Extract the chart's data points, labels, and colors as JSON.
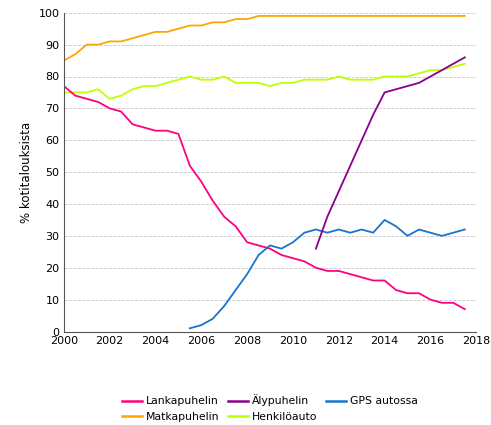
{
  "title": "",
  "ylabel": "% kotitalouksista",
  "ylim": [
    0,
    100
  ],
  "xlim": [
    2000,
    2018
  ],
  "yticks": [
    0,
    10,
    20,
    30,
    40,
    50,
    60,
    70,
    80,
    90,
    100
  ],
  "xticks": [
    2000,
    2002,
    2004,
    2006,
    2008,
    2010,
    2012,
    2014,
    2016,
    2018
  ],
  "series": {
    "Lankapuhelin": {
      "color": "#FF007F",
      "x": [
        2000.0,
        2000.5,
        2001.0,
        2001.5,
        2002.0,
        2002.5,
        2003.0,
        2003.5,
        2004.0,
        2004.5,
        2005.0,
        2005.5,
        2006.0,
        2006.5,
        2007.0,
        2007.5,
        2008.0,
        2008.5,
        2009.0,
        2009.5,
        2010.0,
        2010.5,
        2011.0,
        2011.5,
        2012.0,
        2012.5,
        2013.0,
        2013.5,
        2014.0,
        2014.5,
        2015.0,
        2015.5,
        2016.0,
        2016.5,
        2017.0,
        2017.5
      ],
      "y": [
        77,
        74,
        73,
        72,
        70,
        69,
        65,
        64,
        63,
        63,
        62,
        52,
        47,
        41,
        36,
        33,
        28,
        27,
        26,
        24,
        23,
        22,
        20,
        19,
        19,
        18,
        17,
        16,
        16,
        13,
        12,
        12,
        10,
        9,
        9,
        7
      ]
    },
    "Matkapuhelin": {
      "color": "#FFA500",
      "x": [
        2000.0,
        2000.5,
        2001.0,
        2001.5,
        2002.0,
        2002.5,
        2003.0,
        2003.5,
        2004.0,
        2004.5,
        2005.0,
        2005.5,
        2006.0,
        2006.5,
        2007.0,
        2007.5,
        2008.0,
        2008.5,
        2009.0,
        2009.5,
        2010.0,
        2010.5,
        2011.0,
        2011.5,
        2012.0,
        2012.5,
        2013.0,
        2013.5,
        2014.0,
        2014.5,
        2015.0,
        2015.5,
        2016.0,
        2016.5,
        2017.0,
        2017.5
      ],
      "y": [
        85,
        87,
        90,
        90,
        91,
        91,
        92,
        93,
        94,
        94,
        95,
        96,
        96,
        97,
        97,
        98,
        98,
        99,
        99,
        99,
        99,
        99,
        99,
        99,
        99,
        99,
        99,
        99,
        99,
        99,
        99,
        99,
        99,
        99,
        99,
        99
      ]
    },
    "Alypuhelin": {
      "color": "#8B008B",
      "x": [
        2011.0,
        2011.5,
        2012.0,
        2012.5,
        2013.0,
        2013.5,
        2014.0,
        2014.5,
        2015.0,
        2015.5,
        2016.0,
        2016.5,
        2017.0,
        2017.5
      ],
      "y": [
        26,
        36,
        44,
        52,
        60,
        68,
        75,
        76,
        77,
        78,
        80,
        82,
        84,
        86
      ]
    },
    "Henkiloauto": {
      "color": "#BFFF00",
      "x": [
        2000.0,
        2000.5,
        2001.0,
        2001.5,
        2002.0,
        2002.5,
        2003.0,
        2003.5,
        2004.0,
        2004.5,
        2005.0,
        2005.5,
        2006.0,
        2006.5,
        2007.0,
        2007.5,
        2008.0,
        2008.5,
        2009.0,
        2009.5,
        2010.0,
        2010.5,
        2011.0,
        2011.5,
        2012.0,
        2012.5,
        2013.0,
        2013.5,
        2014.0,
        2014.5,
        2015.0,
        2015.5,
        2016.0,
        2016.5,
        2017.0,
        2017.5
      ],
      "y": [
        75,
        75,
        75,
        76,
        73,
        74,
        76,
        77,
        77,
        78,
        79,
        80,
        79,
        79,
        80,
        78,
        78,
        78,
        77,
        78,
        78,
        79,
        79,
        79,
        80,
        79,
        79,
        79,
        80,
        80,
        80,
        81,
        82,
        82,
        83,
        84
      ]
    },
    "GPS autossa": {
      "color": "#1874CD",
      "x": [
        2005.5,
        2006.0,
        2006.5,
        2007.0,
        2007.5,
        2008.0,
        2008.5,
        2009.0,
        2009.5,
        2010.0,
        2010.5,
        2011.0,
        2011.5,
        2012.0,
        2012.5,
        2013.0,
        2013.5,
        2014.0,
        2014.5,
        2015.0,
        2015.5,
        2016.0,
        2016.5,
        2017.0,
        2017.5
      ],
      "y": [
        1,
        2,
        4,
        8,
        13,
        18,
        24,
        27,
        26,
        28,
        31,
        32,
        31,
        32,
        31,
        32,
        31,
        35,
        33,
        30,
        32,
        31,
        30,
        31,
        32
      ]
    }
  },
  "legend_entries": [
    {
      "label": "Lankapuhelin",
      "color": "#FF007F"
    },
    {
      "label": "Matkapuhelin",
      "color": "#FFA500"
    },
    {
      "label": "Älypuhelin",
      "color": "#8B008B"
    },
    {
      "label": "Henkilöauto",
      "color": "#BFFF00"
    },
    {
      "label": "GPS autossa",
      "color": "#1874CD"
    }
  ],
  "background_color": "#ffffff",
  "grid_color": "#c8c8c8"
}
